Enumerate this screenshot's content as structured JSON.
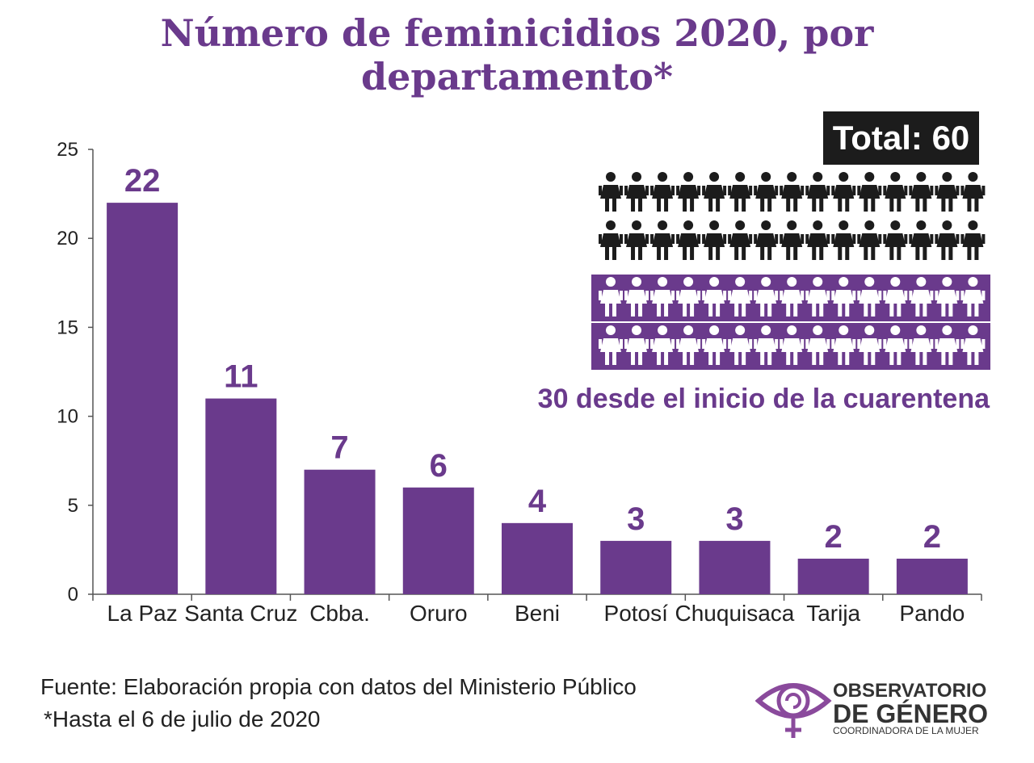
{
  "title": "Número de feminicidios 2020, por departamento*",
  "chart_data": {
    "type": "bar",
    "categories": [
      "La Paz",
      "Santa Cruz",
      "Cbba.",
      "Oruro",
      "Beni",
      "Potosí",
      "Chuquisaca",
      "Tarija",
      "Pando"
    ],
    "values": [
      22,
      11,
      7,
      6,
      4,
      3,
      3,
      2,
      2
    ],
    "ylim": [
      0,
      25
    ],
    "yticks": [
      0,
      5,
      10,
      15,
      20,
      25
    ],
    "xlabel": "",
    "ylabel": "",
    "grid": false,
    "bar_color": "#6a3a8c"
  },
  "infographic": {
    "total": "Total: 60",
    "total_count": 60,
    "quarantine_count": 30,
    "quarantine_text": "30 desde el inicio de la cuarentena",
    "figure_color_dark": "#1c1c1c",
    "figure_color_highlight": "#6a3a8c"
  },
  "source": "Fuente: Elaboración propia con datos del Ministerio Público",
  "footnote": "*Hasta el 6 de julio de 2020",
  "logo": {
    "line1": "OBSERVATORIO",
    "line2": "DE GÉNERO",
    "line3": "COORDINADORA DE LA MUJER",
    "icon": "eye-female-symbol-icon"
  }
}
